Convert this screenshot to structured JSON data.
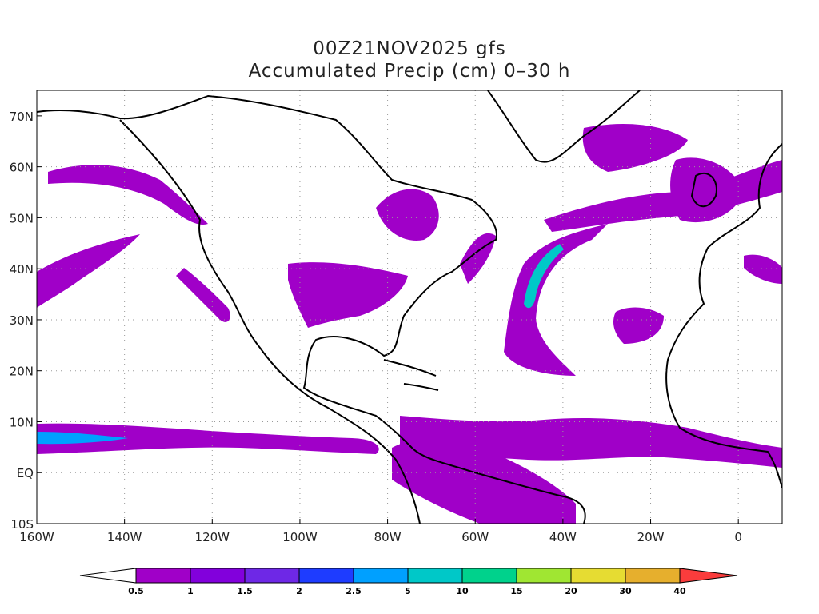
{
  "map": {
    "title_line1": "00Z21NOV2025 gfs",
    "title_line2": "Accumulated Precip (cm) 0–30 h",
    "lat_labels": [
      "70N",
      "60N",
      "50N",
      "40N",
      "30N",
      "20N",
      "10N",
      "EQ",
      "10S"
    ],
    "lon_labels": [
      "160W",
      "140W",
      "120W",
      "100W",
      "80W",
      "60W",
      "40W",
      "20W",
      "0"
    ],
    "grid": "dotted",
    "extent": {
      "lon": [
        -160,
        10
      ],
      "lat": [
        -10,
        75
      ]
    }
  },
  "colorbar": {
    "labels": [
      "0.5",
      "1",
      "1.5",
      "2",
      "2.5",
      "5",
      "10",
      "15",
      "20",
      "30",
      "40"
    ],
    "colors": [
      "#a000c8",
      "#8200dc",
      "#6e28e6",
      "#1e3cff",
      "#00a0ff",
      "#00c8c8",
      "#00d28c",
      "#a0e632",
      "#e6dc32",
      "#e6af2d",
      "#f08228",
      "#fa3c3c"
    ]
  }
}
